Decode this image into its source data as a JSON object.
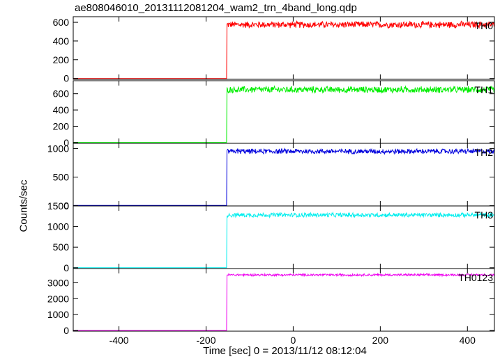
{
  "title": "ae808046010_20131112081204_wam2_trn_4band_long.qdp",
  "ylabel": "Counts/sec",
  "xlabel": "Time [sec] 0 = 2013/11/12 08:12:04",
  "chart_data": {
    "type": "line",
    "shared_x": true,
    "xlim": [
      -505,
      462
    ],
    "x_ticks": [
      -400,
      -200,
      0,
      200,
      400
    ],
    "step_time": -152,
    "grid": false,
    "panels": [
      {
        "name": "TH0",
        "color": "#ff0000",
        "ylim": [
          -10,
          660
        ],
        "y_ticks": [
          0,
          200,
          400,
          600
        ],
        "baseline": 0,
        "level": 575,
        "noise": 40
      },
      {
        "name": "TH1",
        "color": "#00ee00",
        "ylim": [
          -10,
          760
        ],
        "y_ticks": [
          0,
          200,
          400,
          600
        ],
        "baseline": 2,
        "level": 650,
        "noise": 45
      },
      {
        "name": "TH2",
        "color": "#0000dd",
        "ylim": [
          -5,
          1090
        ],
        "y_ticks": [
          0,
          500,
          1000
        ],
        "baseline": 5,
        "level": 950,
        "noise": 50
      },
      {
        "name": "TH3",
        "color": "#00eeee",
        "ylim": [
          -20,
          1500
        ],
        "y_ticks": [
          0,
          500,
          1000,
          1500
        ],
        "baseline": 0,
        "level": 1280,
        "noise": 60
      },
      {
        "name": "TH0123",
        "color": "#ee00ee",
        "ylim": [
          -50,
          3900
        ],
        "y_ticks": [
          0,
          1000,
          2000,
          3000
        ],
        "baseline": 0,
        "level": 3500,
        "noise": 80
      }
    ]
  }
}
